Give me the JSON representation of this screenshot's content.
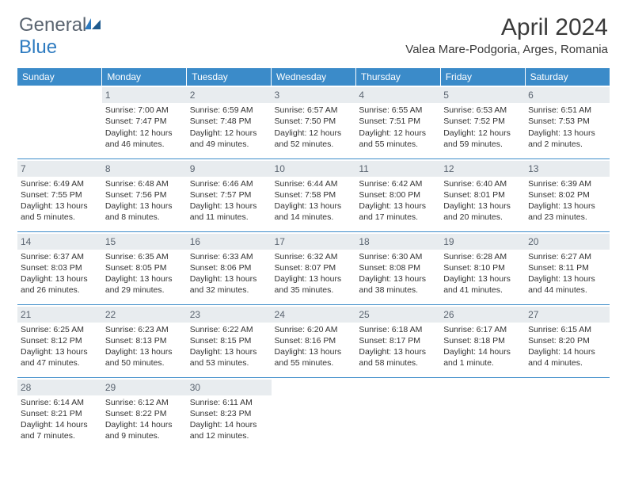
{
  "logo": {
    "general": "General",
    "blue": "Blue"
  },
  "title": "April 2024",
  "location": "Valea Mare-Podgoria, Arges, Romania",
  "colors": {
    "header_bg": "#3b8bc9",
    "header_text": "#ffffff",
    "daynum_bg": "#e8ecef",
    "daynum_text": "#5a6470",
    "border": "#3b8bc9",
    "logo_gray": "#5a6470",
    "logo_blue": "#2e7bc0"
  },
  "weekdays": [
    "Sunday",
    "Monday",
    "Tuesday",
    "Wednesday",
    "Thursday",
    "Friday",
    "Saturday"
  ],
  "weeks": [
    [
      null,
      {
        "n": "1",
        "sr": "Sunrise: 7:00 AM",
        "ss": "Sunset: 7:47 PM",
        "d1": "Daylight: 12 hours",
        "d2": "and 46 minutes."
      },
      {
        "n": "2",
        "sr": "Sunrise: 6:59 AM",
        "ss": "Sunset: 7:48 PM",
        "d1": "Daylight: 12 hours",
        "d2": "and 49 minutes."
      },
      {
        "n": "3",
        "sr": "Sunrise: 6:57 AM",
        "ss": "Sunset: 7:50 PM",
        "d1": "Daylight: 12 hours",
        "d2": "and 52 minutes."
      },
      {
        "n": "4",
        "sr": "Sunrise: 6:55 AM",
        "ss": "Sunset: 7:51 PM",
        "d1": "Daylight: 12 hours",
        "d2": "and 55 minutes."
      },
      {
        "n": "5",
        "sr": "Sunrise: 6:53 AM",
        "ss": "Sunset: 7:52 PM",
        "d1": "Daylight: 12 hours",
        "d2": "and 59 minutes."
      },
      {
        "n": "6",
        "sr": "Sunrise: 6:51 AM",
        "ss": "Sunset: 7:53 PM",
        "d1": "Daylight: 13 hours",
        "d2": "and 2 minutes."
      }
    ],
    [
      {
        "n": "7",
        "sr": "Sunrise: 6:49 AM",
        "ss": "Sunset: 7:55 PM",
        "d1": "Daylight: 13 hours",
        "d2": "and 5 minutes."
      },
      {
        "n": "8",
        "sr": "Sunrise: 6:48 AM",
        "ss": "Sunset: 7:56 PM",
        "d1": "Daylight: 13 hours",
        "d2": "and 8 minutes."
      },
      {
        "n": "9",
        "sr": "Sunrise: 6:46 AM",
        "ss": "Sunset: 7:57 PM",
        "d1": "Daylight: 13 hours",
        "d2": "and 11 minutes."
      },
      {
        "n": "10",
        "sr": "Sunrise: 6:44 AM",
        "ss": "Sunset: 7:58 PM",
        "d1": "Daylight: 13 hours",
        "d2": "and 14 minutes."
      },
      {
        "n": "11",
        "sr": "Sunrise: 6:42 AM",
        "ss": "Sunset: 8:00 PM",
        "d1": "Daylight: 13 hours",
        "d2": "and 17 minutes."
      },
      {
        "n": "12",
        "sr": "Sunrise: 6:40 AM",
        "ss": "Sunset: 8:01 PM",
        "d1": "Daylight: 13 hours",
        "d2": "and 20 minutes."
      },
      {
        "n": "13",
        "sr": "Sunrise: 6:39 AM",
        "ss": "Sunset: 8:02 PM",
        "d1": "Daylight: 13 hours",
        "d2": "and 23 minutes."
      }
    ],
    [
      {
        "n": "14",
        "sr": "Sunrise: 6:37 AM",
        "ss": "Sunset: 8:03 PM",
        "d1": "Daylight: 13 hours",
        "d2": "and 26 minutes."
      },
      {
        "n": "15",
        "sr": "Sunrise: 6:35 AM",
        "ss": "Sunset: 8:05 PM",
        "d1": "Daylight: 13 hours",
        "d2": "and 29 minutes."
      },
      {
        "n": "16",
        "sr": "Sunrise: 6:33 AM",
        "ss": "Sunset: 8:06 PM",
        "d1": "Daylight: 13 hours",
        "d2": "and 32 minutes."
      },
      {
        "n": "17",
        "sr": "Sunrise: 6:32 AM",
        "ss": "Sunset: 8:07 PM",
        "d1": "Daylight: 13 hours",
        "d2": "and 35 minutes."
      },
      {
        "n": "18",
        "sr": "Sunrise: 6:30 AM",
        "ss": "Sunset: 8:08 PM",
        "d1": "Daylight: 13 hours",
        "d2": "and 38 minutes."
      },
      {
        "n": "19",
        "sr": "Sunrise: 6:28 AM",
        "ss": "Sunset: 8:10 PM",
        "d1": "Daylight: 13 hours",
        "d2": "and 41 minutes."
      },
      {
        "n": "20",
        "sr": "Sunrise: 6:27 AM",
        "ss": "Sunset: 8:11 PM",
        "d1": "Daylight: 13 hours",
        "d2": "and 44 minutes."
      }
    ],
    [
      {
        "n": "21",
        "sr": "Sunrise: 6:25 AM",
        "ss": "Sunset: 8:12 PM",
        "d1": "Daylight: 13 hours",
        "d2": "and 47 minutes."
      },
      {
        "n": "22",
        "sr": "Sunrise: 6:23 AM",
        "ss": "Sunset: 8:13 PM",
        "d1": "Daylight: 13 hours",
        "d2": "and 50 minutes."
      },
      {
        "n": "23",
        "sr": "Sunrise: 6:22 AM",
        "ss": "Sunset: 8:15 PM",
        "d1": "Daylight: 13 hours",
        "d2": "and 53 minutes."
      },
      {
        "n": "24",
        "sr": "Sunrise: 6:20 AM",
        "ss": "Sunset: 8:16 PM",
        "d1": "Daylight: 13 hours",
        "d2": "and 55 minutes."
      },
      {
        "n": "25",
        "sr": "Sunrise: 6:18 AM",
        "ss": "Sunset: 8:17 PM",
        "d1": "Daylight: 13 hours",
        "d2": "and 58 minutes."
      },
      {
        "n": "26",
        "sr": "Sunrise: 6:17 AM",
        "ss": "Sunset: 8:18 PM",
        "d1": "Daylight: 14 hours",
        "d2": "and 1 minute."
      },
      {
        "n": "27",
        "sr": "Sunrise: 6:15 AM",
        "ss": "Sunset: 8:20 PM",
        "d1": "Daylight: 14 hours",
        "d2": "and 4 minutes."
      }
    ],
    [
      {
        "n": "28",
        "sr": "Sunrise: 6:14 AM",
        "ss": "Sunset: 8:21 PM",
        "d1": "Daylight: 14 hours",
        "d2": "and 7 minutes."
      },
      {
        "n": "29",
        "sr": "Sunrise: 6:12 AM",
        "ss": "Sunset: 8:22 PM",
        "d1": "Daylight: 14 hours",
        "d2": "and 9 minutes."
      },
      {
        "n": "30",
        "sr": "Sunrise: 6:11 AM",
        "ss": "Sunset: 8:23 PM",
        "d1": "Daylight: 14 hours",
        "d2": "and 12 minutes."
      },
      null,
      null,
      null,
      null
    ]
  ]
}
